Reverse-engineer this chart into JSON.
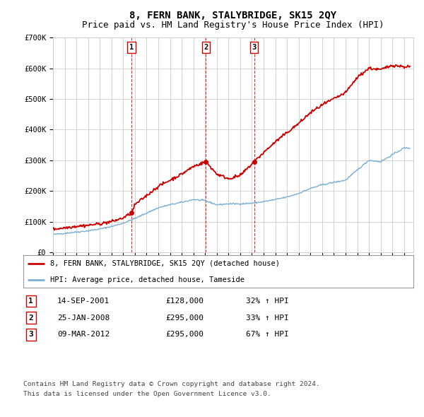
{
  "title": "8, FERN BANK, STALYBRIDGE, SK15 2QY",
  "subtitle": "Price paid vs. HM Land Registry's House Price Index (HPI)",
  "ylim": [
    0,
    700000
  ],
  "xlim_start": 1995.0,
  "xlim_end": 2025.8,
  "sales": [
    {
      "label": "1",
      "date_str": "14-SEP-2001",
      "year": 2001.71,
      "price": 128000,
      "pct": "32%",
      "direction": "↑"
    },
    {
      "label": "2",
      "date_str": "25-JAN-2008",
      "year": 2008.07,
      "price": 295000,
      "pct": "33%",
      "direction": "↑"
    },
    {
      "label": "3",
      "date_str": "09-MAR-2012",
      "year": 2012.19,
      "price": 295000,
      "pct": "67%",
      "direction": "↑"
    }
  ],
  "legend_property": "8, FERN BANK, STALYBRIDGE, SK15 2QY (detached house)",
  "legend_hpi": "HPI: Average price, detached house, Tameside",
  "footer1": "Contains HM Land Registry data © Crown copyright and database right 2024.",
  "footer2": "This data is licensed under the Open Government Licence v3.0.",
  "line_color_red": "#cc0000",
  "line_color_blue": "#7aafd4",
  "grid_color": "#cccccc",
  "vline_color": "#cc0000",
  "background_color": "#ffffff",
  "title_fontsize": 10,
  "subtitle_fontsize": 9,
  "tick_fontsize": 7.5,
  "hpi_ref_years": [
    1995,
    1996,
    1997,
    1998,
    1999,
    2000,
    2001,
    2002,
    2003,
    2004,
    2005,
    2006,
    2007,
    2008,
    2009,
    2010,
    2011,
    2012,
    2013,
    2014,
    2015,
    2016,
    2017,
    2018,
    2019,
    2020,
    2021,
    2022,
    2023,
    2024,
    2025
  ],
  "hpi_ref_prices": [
    58000,
    62000,
    66000,
    70000,
    76000,
    84000,
    95000,
    110000,
    128000,
    145000,
    155000,
    163000,
    172000,
    168000,
    155000,
    158000,
    158000,
    160000,
    165000,
    172000,
    180000,
    192000,
    208000,
    220000,
    228000,
    235000,
    268000,
    300000,
    295000,
    318000,
    340000
  ],
  "prop_ref_years": [
    1995,
    1996,
    1997,
    1998,
    1999,
    2000,
    2001.0,
    2001.71,
    2002,
    2003,
    2004,
    2005,
    2006,
    2007,
    2008.07,
    2009,
    2010,
    2011,
    2012.19,
    2013,
    2014,
    2015,
    2016,
    2017,
    2018,
    2019,
    2020,
    2021,
    2022,
    2023,
    2024,
    2025
  ],
  "prop_ref_prices": [
    75000,
    80000,
    85000,
    88000,
    93000,
    100000,
    112000,
    128000,
    155000,
    185000,
    215000,
    235000,
    255000,
    280000,
    295000,
    255000,
    240000,
    250000,
    295000,
    325000,
    360000,
    390000,
    420000,
    455000,
    480000,
    500000,
    520000,
    570000,
    600000,
    595000,
    610000,
    605000
  ]
}
